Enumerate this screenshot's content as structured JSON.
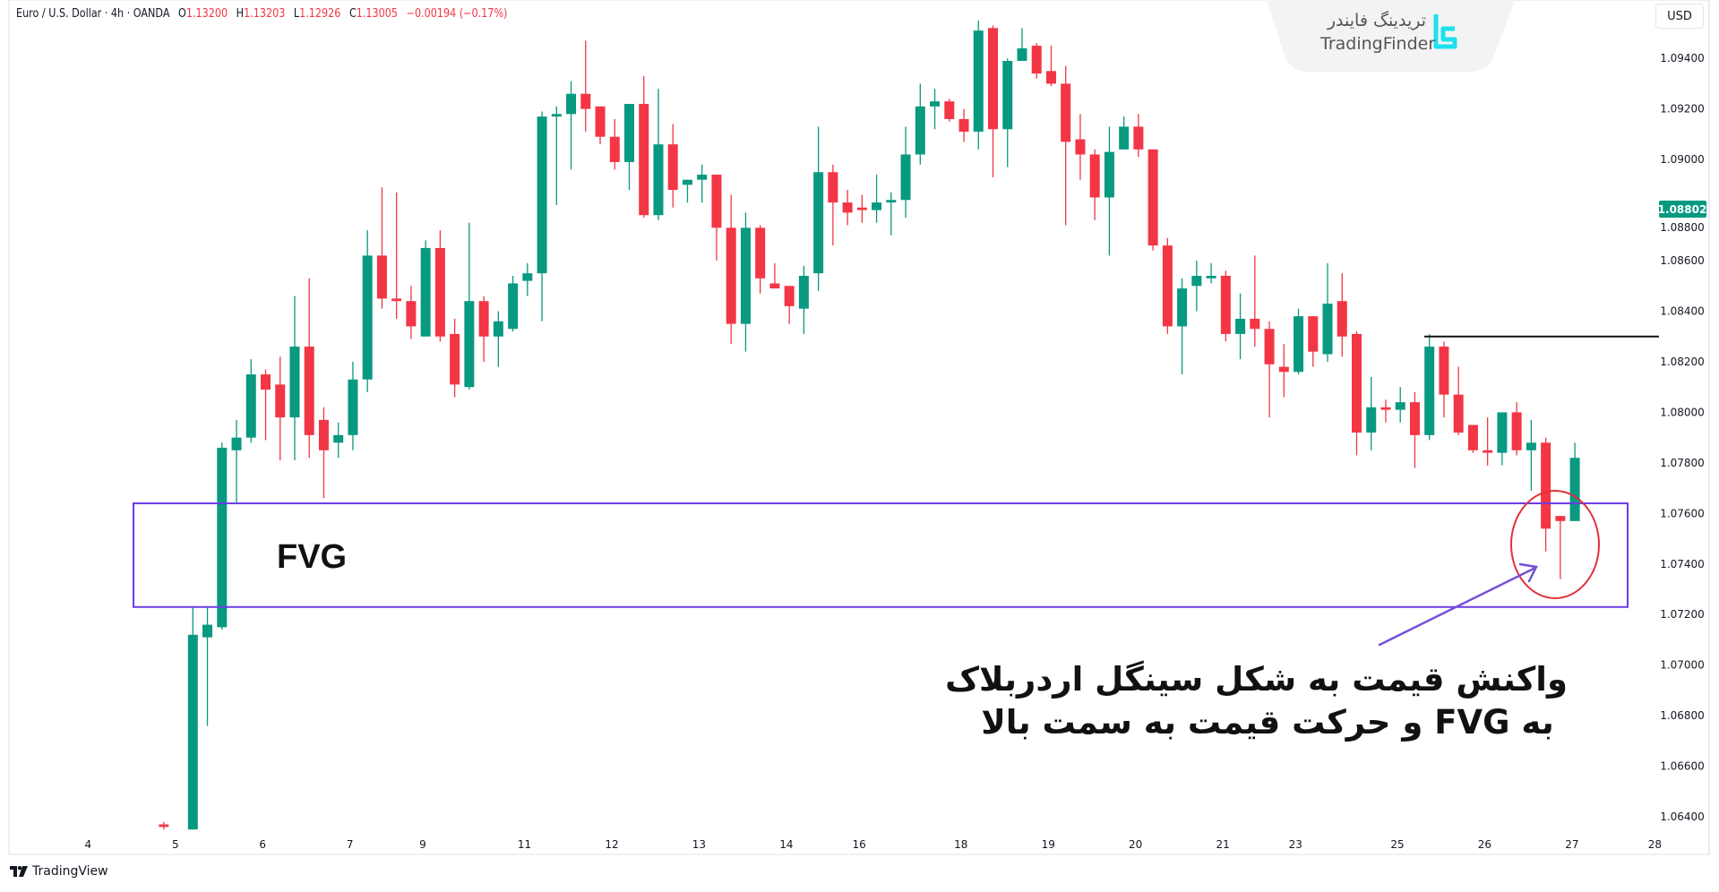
{
  "header": {
    "symbol": "Euro / U.S. Dollar · 4h · OANDA",
    "open_label": "O",
    "open": "1.13200",
    "high_label": "H",
    "high": "1.13203",
    "low_label": "L",
    "low": "1.12926",
    "close_label": "C",
    "close": "1.13005",
    "change": "−0.00194 (−0.17%)"
  },
  "currency": "USD",
  "current_price": "1.08802",
  "watermark": {
    "fa": "تریدینگ فایندر",
    "en": "TradingFinder"
  },
  "footer": {
    "brand": "TradingView"
  },
  "colors": {
    "up": "#089981",
    "down": "#f23645",
    "zone": "#6b3de6",
    "circle": "#e3303b",
    "arrow": "#7650d8",
    "price_box": "#089981"
  },
  "annotations": {
    "zone_label": "FVG",
    "note_line1": "واکنش قیمت به شکل سینگل اردربلاک",
    "note_line2": "به FVG و حرکت قیمت به سمت بالا"
  },
  "chart_data": {
    "type": "candlestick",
    "title": "Euro / U.S. Dollar · 4h · OANDA",
    "ylabel": "USD",
    "ylim": [
      1.0632,
      1.0962
    ],
    "y_ticks": [
      "1.09400",
      "1.09200",
      "1.09000",
      "1.08800",
      "1.08600",
      "1.08400",
      "1.08200",
      "1.08000",
      "1.07800",
      "1.07600",
      "1.07400",
      "1.07200",
      "1.07000",
      "1.06800",
      "1.06600",
      "1.06400"
    ],
    "x_ticks": [
      {
        "label": "4",
        "bar": -6.2
      },
      {
        "label": "5",
        "bar": -0.2
      },
      {
        "label": "6",
        "bar": 5.8
      },
      {
        "label": "7",
        "bar": 11.8
      },
      {
        "label": "9",
        "bar": 16.8
      },
      {
        "label": "11",
        "bar": 23.8
      },
      {
        "label": "12",
        "bar": 29.8
      },
      {
        "label": "13",
        "bar": 35.8
      },
      {
        "label": "14",
        "bar": 41.8
      },
      {
        "label": "16",
        "bar": 46.8
      },
      {
        "label": "18",
        "bar": 53.8
      },
      {
        "label": "19",
        "bar": 59.8
      },
      {
        "label": "20",
        "bar": 65.8
      },
      {
        "label": "21",
        "bar": 71.8
      },
      {
        "label": "23",
        "bar": 76.8
      },
      {
        "label": "25",
        "bar": 83.8
      },
      {
        "label": "26",
        "bar": 89.8
      },
      {
        "label": "27",
        "bar": 95.8
      },
      {
        "label": "28",
        "bar": 101.5
      }
    ],
    "fvg_zone": {
      "low": 1.0723,
      "high": 1.0764
    },
    "resistance_line": 1.083,
    "candles_format": [
      "bar",
      "open",
      "high",
      "low",
      "close"
    ],
    "candles": [
      [
        -1,
        1.0637,
        1.0638,
        1.0635,
        1.0636
      ],
      [
        1,
        1.0635,
        1.0723,
        1.0635,
        1.0712
      ],
      [
        2,
        1.0711,
        1.0723,
        1.0676,
        1.0716
      ],
      [
        3,
        1.0715,
        1.0788,
        1.0714,
        1.0786
      ],
      [
        4,
        1.0785,
        1.0797,
        1.0764,
        1.079
      ],
      [
        5,
        1.079,
        1.0821,
        1.0788,
        1.0815
      ],
      [
        6,
        1.0815,
        1.0817,
        1.0789,
        1.0809
      ],
      [
        7,
        1.0811,
        1.0822,
        1.0781,
        1.0798
      ],
      [
        8,
        1.0798,
        1.0846,
        1.0781,
        1.0826
      ],
      [
        9,
        1.0826,
        1.0853,
        1.0782,
        1.0791
      ],
      [
        10,
        1.0797,
        1.0802,
        1.0766,
        1.0785
      ],
      [
        11,
        1.0788,
        1.0796,
        1.0782,
        1.0791
      ],
      [
        12,
        1.0791,
        1.082,
        1.0785,
        1.0813
      ],
      [
        13,
        1.0813,
        1.0872,
        1.0808,
        1.0862
      ],
      [
        14,
        1.0862,
        1.0889,
        1.0841,
        1.0845
      ],
      [
        15,
        1.0845,
        1.0887,
        1.0837,
        1.0844
      ],
      [
        16,
        1.0844,
        1.085,
        1.0829,
        1.0834
      ],
      [
        17,
        1.083,
        1.0868,
        1.083,
        1.0865
      ],
      [
        18,
        1.0865,
        1.0872,
        1.0828,
        1.083
      ],
      [
        19,
        1.0831,
        1.0837,
        1.0806,
        1.0811
      ],
      [
        20,
        1.081,
        1.0875,
        1.0809,
        1.0844
      ],
      [
        21,
        1.0844,
        1.0846,
        1.082,
        1.083
      ],
      [
        22,
        1.083,
        1.084,
        1.0818,
        1.0836
      ],
      [
        23,
        1.0833,
        1.0854,
        1.0832,
        1.0851
      ],
      [
        24,
        1.0852,
        1.0859,
        1.0846,
        1.0855
      ],
      [
        25,
        1.0855,
        1.0919,
        1.0836,
        1.0917
      ],
      [
        26,
        1.0917,
        1.0921,
        1.0882,
        1.0918
      ],
      [
        27,
        1.0918,
        1.0931,
        1.0896,
        1.0926
      ],
      [
        28,
        1.0926,
        1.0947,
        1.0911,
        1.092
      ],
      [
        29,
        1.0921,
        1.0921,
        1.0906,
        1.0909
      ],
      [
        30,
        1.0909,
        1.0916,
        1.0896,
        1.0899
      ],
      [
        31,
        1.0899,
        1.0922,
        1.0888,
        1.0922
      ],
      [
        32,
        1.0922,
        1.0933,
        1.0877,
        1.0878
      ],
      [
        33,
        1.0878,
        1.0928,
        1.0876,
        1.0906
      ],
      [
        34,
        1.0906,
        1.0914,
        1.0881,
        1.0888
      ],
      [
        35,
        1.089,
        1.0892,
        1.0883,
        1.0892
      ],
      [
        36,
        1.0892,
        1.0898,
        1.0883,
        1.0894
      ],
      [
        37,
        1.0894,
        1.0894,
        1.086,
        1.0873
      ],
      [
        38,
        1.0873,
        1.0886,
        1.0827,
        1.0835
      ],
      [
        39,
        1.0835,
        1.0879,
        1.0824,
        1.0873
      ],
      [
        40,
        1.0873,
        1.0874,
        1.0847,
        1.0853
      ],
      [
        41,
        1.0851,
        1.0859,
        1.0849,
        1.0849
      ],
      [
        42,
        1.085,
        1.085,
        1.0835,
        1.0842
      ],
      [
        43,
        1.0841,
        1.0858,
        1.0831,
        1.0854
      ],
      [
        44,
        1.0855,
        1.0913,
        1.0848,
        1.0895
      ],
      [
        45,
        1.0895,
        1.0898,
        1.0866,
        1.0883
      ],
      [
        46,
        1.0883,
        1.0888,
        1.0874,
        1.0879
      ],
      [
        47,
        1.0881,
        1.0886,
        1.0875,
        1.088
      ],
      [
        48,
        1.088,
        1.0894,
        1.0875,
        1.0883
      ],
      [
        49,
        1.0883,
        1.0887,
        1.087,
        1.0884
      ],
      [
        50,
        1.0884,
        1.0913,
        1.0877,
        1.0902
      ],
      [
        51,
        1.0902,
        1.093,
        1.0898,
        1.0921
      ],
      [
        52,
        1.0921,
        1.0928,
        1.0912,
        1.0923
      ],
      [
        53,
        1.0923,
        1.0924,
        1.0915,
        1.0916
      ],
      [
        54,
        1.0916,
        1.092,
        1.0907,
        1.0911
      ],
      [
        55,
        1.0911,
        1.0955,
        1.0904,
        1.0951
      ],
      [
        56,
        1.0952,
        1.0953,
        1.0893,
        1.0912
      ],
      [
        57,
        1.0912,
        1.094,
        1.0897,
        1.0939
      ],
      [
        58,
        1.0939,
        1.0952,
        1.0939,
        1.0944
      ],
      [
        59,
        1.0945,
        1.0946,
        1.0932,
        1.0934
      ],
      [
        60,
        1.0935,
        1.0945,
        1.0929,
        1.093
      ],
      [
        61,
        1.093,
        1.0937,
        1.0874,
        1.0907
      ],
      [
        62,
        1.0908,
        1.0918,
        1.0892,
        1.0902
      ],
      [
        63,
        1.0902,
        1.0904,
        1.0876,
        1.0885
      ],
      [
        64,
        1.0885,
        1.0913,
        1.0862,
        1.0903
      ],
      [
        65,
        1.0904,
        1.0917,
        1.0904,
        1.0913
      ],
      [
        66,
        1.0913,
        1.0918,
        1.0901,
        1.0904
      ],
      [
        67,
        1.0904,
        1.0904,
        1.0864,
        1.0866
      ],
      [
        68,
        1.0866,
        1.0869,
        1.0831,
        1.0834
      ],
      [
        69,
        1.0834,
        1.0853,
        1.0815,
        1.0849
      ],
      [
        70,
        1.085,
        1.086,
        1.084,
        1.0854
      ],
      [
        71,
        1.0853,
        1.0859,
        1.0851,
        1.0854
      ],
      [
        72,
        1.0854,
        1.0856,
        1.0828,
        1.0831
      ],
      [
        73,
        1.0831,
        1.0847,
        1.0821,
        1.0837
      ],
      [
        74,
        1.0837,
        1.0862,
        1.0826,
        1.0833
      ],
      [
        75,
        1.0833,
        1.0836,
        1.0798,
        1.0819
      ],
      [
        76,
        1.0818,
        1.0827,
        1.0806,
        1.0816
      ],
      [
        77,
        1.0816,
        1.0841,
        1.0815,
        1.0838
      ],
      [
        78,
        1.0838,
        1.0838,
        1.0818,
        1.0824
      ],
      [
        79,
        1.0823,
        1.0859,
        1.082,
        1.0843
      ],
      [
        80,
        1.0844,
        1.0855,
        1.0822,
        1.083
      ],
      [
        81,
        1.0831,
        1.0832,
        1.0783,
        1.0792
      ],
      [
        82,
        1.0792,
        1.0814,
        1.0785,
        1.0802
      ],
      [
        83,
        1.0802,
        1.0805,
        1.0796,
        1.0801
      ],
      [
        84,
        1.0801,
        1.081,
        1.0796,
        1.0804
      ],
      [
        85,
        1.0804,
        1.0808,
        1.0778,
        1.0791
      ],
      [
        86,
        1.0791,
        1.0831,
        1.0789,
        1.0826
      ],
      [
        87,
        1.0826,
        1.0828,
        1.0798,
        1.0807
      ],
      [
        88,
        1.0807,
        1.0818,
        1.0791,
        1.0792
      ],
      [
        89,
        1.0795,
        1.0795,
        1.0784,
        1.0785
      ],
      [
        90,
        1.0785,
        1.0798,
        1.0779,
        1.0784
      ],
      [
        91,
        1.0784,
        1.08,
        1.0779,
        1.08
      ],
      [
        92,
        1.08,
        1.0804,
        1.0783,
        1.0785
      ],
      [
        93,
        1.0785,
        1.0797,
        1.0769,
        1.0788
      ],
      [
        94,
        1.0788,
        1.079,
        1.0745,
        1.0754
      ],
      [
        95,
        1.0759,
        1.0759,
        1.0734,
        1.0757
      ],
      [
        96,
        1.0757,
        1.0788,
        1.0757,
        1.0782
      ]
    ]
  }
}
